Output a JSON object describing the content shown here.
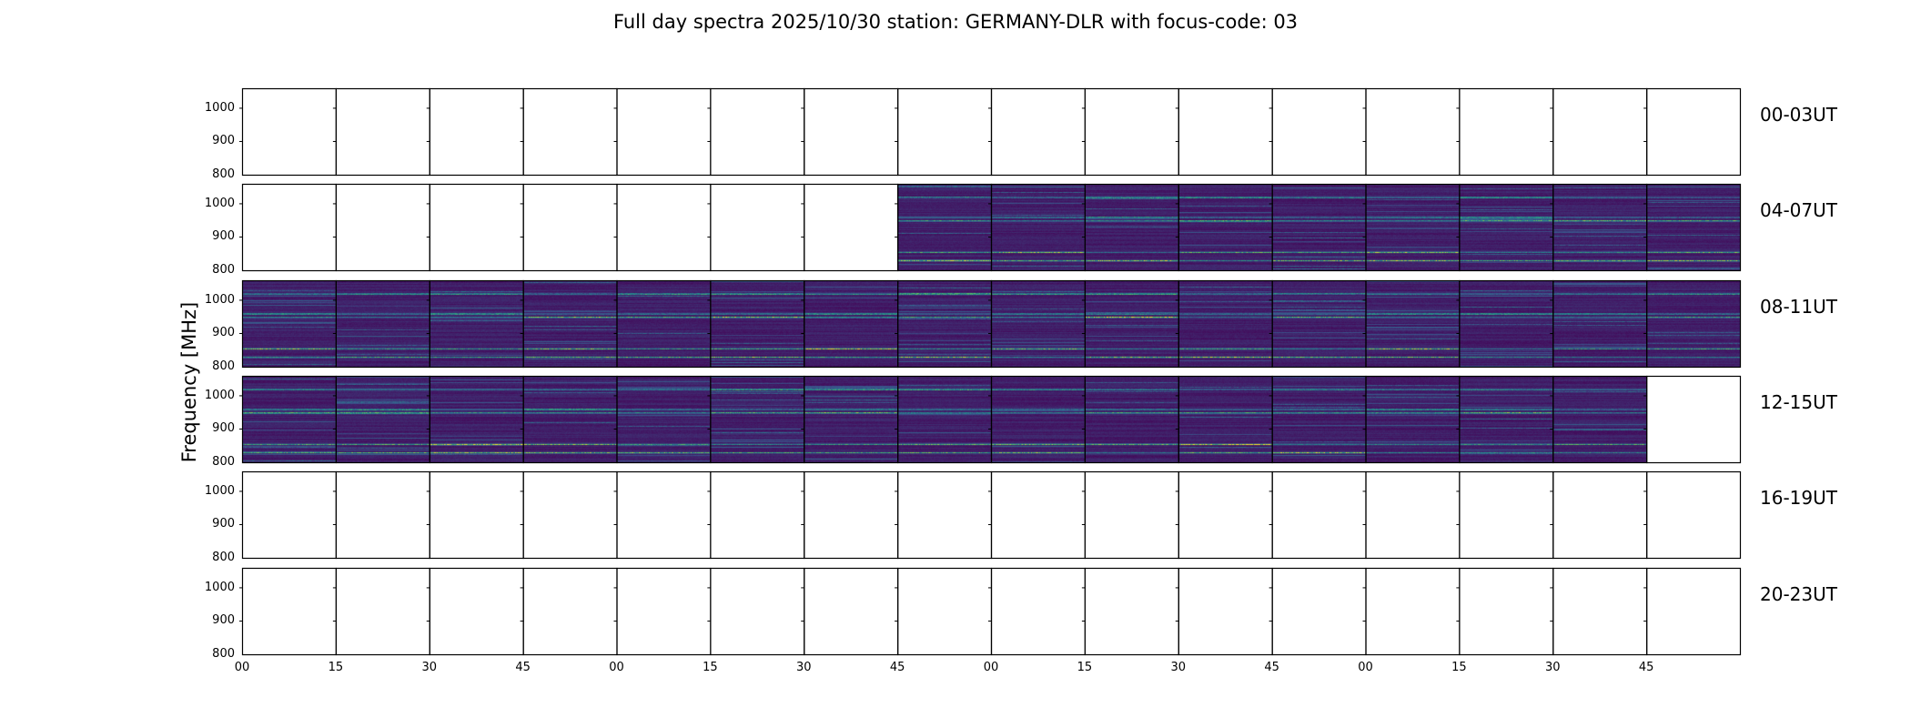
{
  "title": "Full day spectra 2025/10/30 station: GERMANY-DLR with focus-code: 03",
  "chart_data": {
    "type": "heatmap",
    "title": "Full day spectra 2025/10/30 station: GERMANY-DLR with focus-code: 03",
    "ylabel": "Frequency [MHz]",
    "xlabel": "",
    "ylim": [
      800,
      1060
    ],
    "y_ticks": [
      "1000",
      "900",
      "800"
    ],
    "x_ticks": [
      "00",
      "15",
      "30",
      "45",
      "00",
      "15",
      "30",
      "45",
      "00",
      "15",
      "30",
      "45",
      "00",
      "15",
      "30",
      "45"
    ],
    "colormap": "viridis",
    "rows": [
      {
        "label": "00-03UT",
        "data_panels": []
      },
      {
        "label": "04-07UT",
        "data_panels": [
          7,
          8,
          9,
          10,
          11,
          12,
          13,
          14,
          15
        ]
      },
      {
        "label": "08-11UT",
        "data_panels": [
          0,
          1,
          2,
          3,
          4,
          5,
          6,
          7,
          8,
          9,
          10,
          11,
          12,
          13,
          14,
          15
        ]
      },
      {
        "label": "12-15UT",
        "data_panels": [
          0,
          1,
          2,
          3,
          4,
          5,
          6,
          7,
          8,
          9,
          10,
          11,
          12,
          13,
          14
        ]
      },
      {
        "label": "16-19UT",
        "data_panels": []
      },
      {
        "label": "20-23UT",
        "data_panels": []
      }
    ],
    "panels_per_row": 16,
    "panel_minutes": 15,
    "bright_bands_mhz": [
      1020,
      960,
      950,
      855,
      830
    ]
  },
  "colors": {
    "background": "#ffffff",
    "axis": "#000000",
    "low": "#440154",
    "mid": "#21918c",
    "high": "#fde725"
  }
}
